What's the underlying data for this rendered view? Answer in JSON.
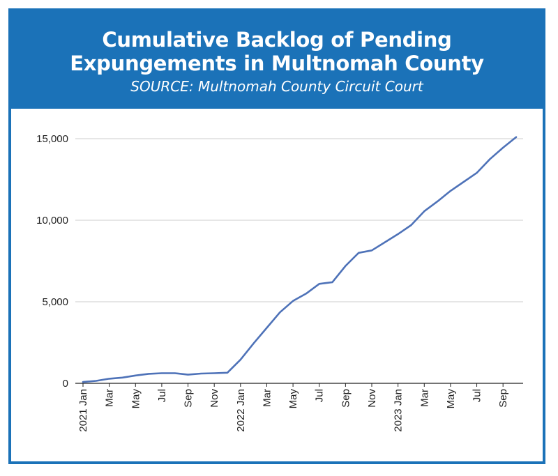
{
  "header": {
    "title_line1": "Cumulative Backlog of Pending",
    "title_line2": "Expungements in Multnomah County",
    "subtitle": "SOURCE: Multnomah County Circuit Court"
  },
  "colors": {
    "header_bg": "#1b72b8",
    "line": "#4e72b8",
    "grid": "#cccccc"
  },
  "chart_data": {
    "type": "line",
    "title": "Cumulative Backlog of Pending Expungements in Multnomah County",
    "subtitle": "SOURCE: Multnomah County Circuit Court",
    "xlabel": "",
    "ylabel": "",
    "ylim": [
      0,
      15000
    ],
    "y_ticks": [
      0,
      5000,
      10000,
      15000
    ],
    "y_tick_labels": [
      "0",
      "5,000",
      "10,000",
      "15,000"
    ],
    "grid": true,
    "legend": "none",
    "x_tick_labels": [
      "2021 Jan",
      "Mar",
      "May",
      "Jul",
      "Sep",
      "Nov",
      "2022 Jan",
      "Mar",
      "May",
      "Jul",
      "Sep",
      "Nov",
      "2023 Jan",
      "Mar",
      "May",
      "Jul",
      "Sep"
    ],
    "x": [
      "2021-01",
      "2021-02",
      "2021-03",
      "2021-04",
      "2021-05",
      "2021-06",
      "2021-07",
      "2021-08",
      "2021-09",
      "2021-10",
      "2021-11",
      "2021-12",
      "2022-01",
      "2022-02",
      "2022-03",
      "2022-04",
      "2022-05",
      "2022-06",
      "2022-07",
      "2022-08",
      "2022-09",
      "2022-10",
      "2022-11",
      "2022-12",
      "2023-01",
      "2023-02",
      "2023-03",
      "2023-04",
      "2023-05",
      "2023-06",
      "2023-07",
      "2023-08",
      "2023-09",
      "2023-10"
    ],
    "series": [
      {
        "values": [
          80,
          150,
          280,
          350,
          480,
          580,
          620,
          620,
          530,
          600,
          620,
          650,
          1450,
          2450,
          3400,
          4350,
          5050,
          5500,
          6100,
          6200,
          7200,
          8000,
          8150,
          8650,
          9150,
          9700,
          10550,
          11150,
          11800,
          12350,
          12900,
          13750,
          14450,
          15100
        ],
        "color": "#4e72b8"
      }
    ]
  }
}
